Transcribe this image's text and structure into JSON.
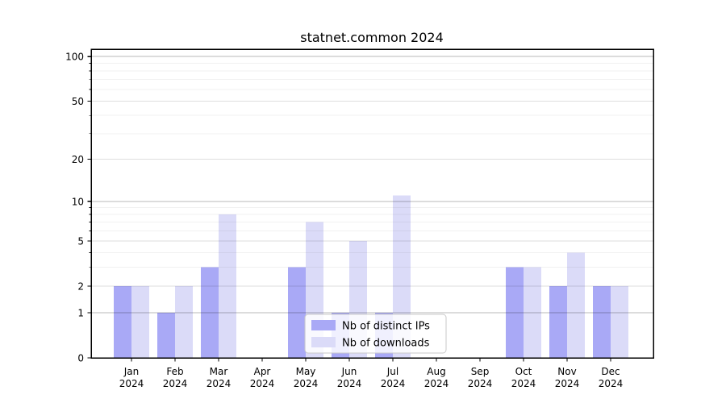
{
  "title": "statnet.common 2024",
  "chart_data": {
    "type": "bar",
    "title": "statnet.common 2024",
    "categories": [
      "Jan",
      "Feb",
      "Mar",
      "Apr",
      "May",
      "Jun",
      "Jul",
      "Aug",
      "Sep",
      "Oct",
      "Nov",
      "Dec"
    ],
    "x_tick_second_line": "2024",
    "series": [
      {
        "name": "Nb of distinct IPs",
        "color": "#a9a9f6",
        "values": [
          2,
          1,
          3,
          0,
          3,
          1,
          1,
          0,
          0,
          3,
          2,
          2
        ]
      },
      {
        "name": "Nb of downloads",
        "color": "#dbdbf8",
        "values": [
          2,
          2,
          8,
          0,
          7,
          5,
          11,
          0,
          0,
          3,
          4,
          2
        ]
      }
    ],
    "yscale": "log1p",
    "ylim": [
      0,
      113
    ],
    "yticks_labeled": [
      0,
      1,
      2,
      5,
      10,
      20,
      50,
      100
    ],
    "yticks_decade": [
      1,
      10,
      100
    ],
    "yticks_mid": [
      2,
      5,
      20,
      50
    ],
    "yticks_minor": [
      3,
      4,
      6,
      7,
      8,
      9,
      30,
      40,
      60,
      70,
      80,
      90
    ],
    "grid": true,
    "legend_position": "lower center",
    "legend_labels": [
      "Nb of distinct IPs",
      "Nb of downloads"
    ],
    "frame_color": "#000000",
    "background_color": "#ffffff"
  }
}
